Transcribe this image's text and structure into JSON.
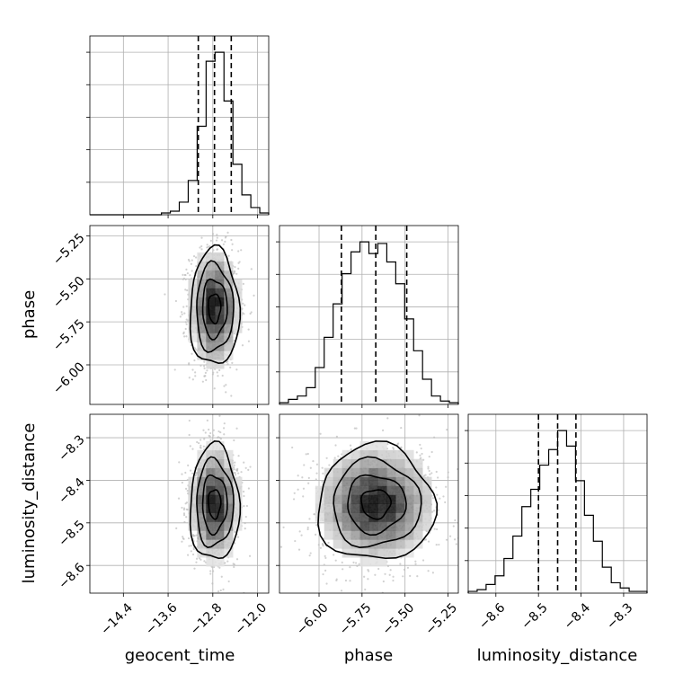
{
  "chart_data": {
    "type": "corner",
    "parameters": [
      "geocent_time",
      "phase",
      "luminosity_distance"
    ],
    "ranges": {
      "geocent_time": [
        -15.0,
        -11.8
      ],
      "phase": [
        -6.23,
        -5.19
      ],
      "luminosity_distance": [
        -8.665,
        -8.245
      ]
    },
    "ticks": {
      "geocent_time": [
        -14.4,
        -13.6,
        -12.8,
        -12.0
      ],
      "phase": [
        -6.0,
        -5.75,
        -5.5,
        -5.25
      ],
      "luminosity_distance": [
        -8.6,
        -8.5,
        -8.4,
        -8.3
      ]
    },
    "tick_labels": {
      "geocent_time": [
        "−14.4",
        "−13.6",
        "−12.8",
        "−12.0"
      ],
      "phase": [
        "−6.00",
        "−5.75",
        "−5.50",
        "−5.25"
      ],
      "luminosity_distance": [
        "−8.6",
        "−8.5",
        "−8.4",
        "−8.3"
      ]
    },
    "axis_labels": {
      "geocent_time": "geocent_time",
      "phase": "phase",
      "luminosity_distance": "luminosity_distance"
    },
    "quantiles": {
      "geocent_time": [
        -13.06,
        -12.77,
        -12.47
      ],
      "phase": [
        -5.87,
        -5.67,
        -5.49
      ],
      "luminosity_distance": [
        -8.5,
        -8.455,
        -8.412
      ]
    },
    "histograms": {
      "geocent_time": {
        "edges": [
          -15.0,
          -14.84,
          -14.68,
          -14.52,
          -14.36,
          -14.2,
          -14.04,
          -13.88,
          -13.72,
          -13.56,
          -13.4,
          -13.24,
          -13.08,
          -12.92,
          -12.76,
          -12.6,
          -12.44,
          -12.28,
          -12.12,
          -11.96,
          -11.8
        ],
        "counts": [
          0,
          0,
          0,
          0,
          0,
          0,
          0,
          0,
          1,
          2,
          7,
          19,
          49,
          85,
          90,
          63,
          28,
          11,
          4,
          1
        ]
      },
      "phase": {
        "edges": [
          -6.23,
          -6.178,
          -6.126,
          -6.074,
          -6.022,
          -5.97,
          -5.918,
          -5.866,
          -5.814,
          -5.762,
          -5.71,
          -5.658,
          -5.606,
          -5.554,
          -5.502,
          -5.45,
          -5.398,
          -5.346,
          -5.294,
          -5.242,
          -5.19
        ],
        "counts": [
          1,
          3,
          5,
          10,
          22,
          40,
          60,
          78,
          91,
          97,
          90,
          96,
          85,
          72,
          51,
          32,
          15,
          5,
          2,
          1
        ]
      },
      "luminosity_distance": {
        "edges": [
          -8.665,
          -8.644,
          -8.623,
          -8.602,
          -8.581,
          -8.56,
          -8.539,
          -8.518,
          -8.497,
          -8.476,
          -8.455,
          -8.434,
          -8.413,
          -8.392,
          -8.371,
          -8.35,
          -8.329,
          -8.308,
          -8.287,
          -8.266,
          -8.245
        ],
        "counts": [
          1,
          2,
          5,
          10,
          20,
          33,
          50,
          60,
          74,
          83,
          94,
          85,
          65,
          45,
          30,
          15,
          6,
          3,
          1,
          1
        ]
      }
    },
    "joint_2d": [
      {
        "x": "geocent_time",
        "y": "phase",
        "center": [
          -12.77,
          -5.67
        ],
        "spread": [
          0.22,
          0.17
        ],
        "correlation": 0.0
      },
      {
        "x": "geocent_time",
        "y": "luminosity_distance",
        "center": [
          -12.77,
          -8.455
        ],
        "spread": [
          0.22,
          0.068
        ],
        "correlation": 0.0
      },
      {
        "x": "phase",
        "y": "luminosity_distance",
        "center": [
          -5.67,
          -8.455
        ],
        "spread": [
          0.17,
          0.068
        ],
        "correlation": 0.0
      }
    ],
    "grid": true,
    "colors": {
      "contour": "#000000",
      "points": "#bdbdbd",
      "grid": "#b0b0b0",
      "density_dark": "#000000",
      "density_light": "#ffffff"
    }
  }
}
